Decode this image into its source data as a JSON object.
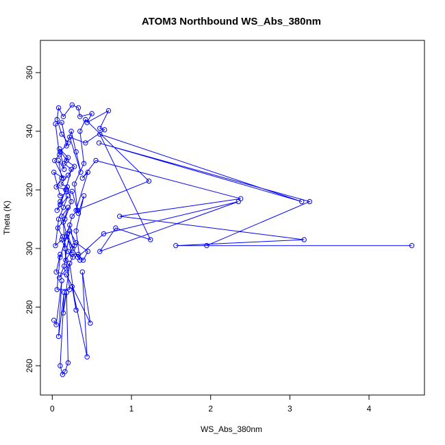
{
  "chart_data": {
    "type": "line",
    "title": "ATOM3 Northbound WS_Abs_380nm",
    "xlabel": "WS_Abs_380nm",
    "ylabel": "Theta (K)",
    "xlim": [
      -0.15,
      4.7
    ],
    "ylim": [
      250,
      371
    ],
    "x_ticks": [
      0,
      1,
      2,
      3,
      4
    ],
    "y_ticks": [
      260,
      280,
      300,
      320,
      340,
      360
    ],
    "grid": false,
    "legend": "none",
    "markers": "open-circle",
    "color": "#0000ff",
    "series": [
      {
        "points": [
          [
            0.02,
            275.5
          ],
          [
            0.05,
            274
          ],
          [
            0.12,
            289
          ],
          [
            0.08,
            270
          ],
          [
            0.15,
            285
          ],
          [
            0.1,
            260
          ],
          [
            0.13,
            257
          ],
          [
            0.16,
            258
          ],
          [
            0.2,
            261
          ],
          [
            0.18,
            285
          ],
          [
            0.14,
            278
          ],
          [
            0.22,
            295
          ],
          [
            0.3,
            279
          ],
          [
            0.25,
            287
          ],
          [
            0.44,
            263
          ],
          [
            0.38,
            292
          ],
          [
            0.48,
            274.5
          ],
          [
            0.18,
            291
          ],
          [
            0.05,
            292
          ],
          [
            0.1,
            298
          ],
          [
            0.06,
            286
          ],
          [
            0.22,
            286
          ],
          [
            0.16,
            300
          ],
          [
            0.12,
            303
          ],
          [
            0.04,
            301
          ],
          [
            0.08,
            310
          ],
          [
            0.14,
            314
          ],
          [
            0.2,
            318
          ],
          [
            0.06,
            313
          ],
          [
            0.1,
            316
          ],
          [
            0.18,
            320
          ],
          [
            0.05,
            321
          ],
          [
            0.12,
            324
          ],
          [
            0.08,
            330
          ],
          [
            0.15,
            327
          ],
          [
            0.1,
            333
          ],
          [
            0.2,
            336
          ],
          [
            0.12,
            339
          ],
          [
            0.06,
            344
          ],
          [
            0.08,
            348
          ],
          [
            0.14,
            345
          ],
          [
            0.25,
            349
          ],
          [
            0.33,
            348
          ],
          [
            0.35,
            345
          ],
          [
            0.5,
            346
          ],
          [
            0.44,
            343
          ],
          [
            0.71,
            347
          ],
          [
            0.6,
            341
          ],
          [
            0.66,
            340.5
          ],
          [
            0.42,
            336
          ],
          [
            0.22,
            338
          ],
          [
            0.36,
            326
          ],
          [
            0.3,
            333
          ],
          [
            0.24,
            340
          ],
          [
            0.18,
            335
          ],
          [
            0.12,
            343
          ],
          [
            0.04,
            342.5
          ],
          [
            0.09,
            332
          ],
          [
            0.03,
            330
          ],
          [
            0.14,
            324
          ],
          [
            0.02,
            326
          ],
          [
            0.1,
            318
          ],
          [
            0.25,
            319.5
          ],
          [
            0.33,
            312
          ],
          [
            0.4,
            318
          ],
          [
            0.3,
            306
          ],
          [
            0.35,
            296
          ],
          [
            0.26,
            300
          ],
          [
            0.19,
            305
          ],
          [
            0.25,
            311
          ],
          [
            0.32,
            313
          ],
          [
            0.28,
            322
          ],
          [
            0.4,
            329
          ],
          [
            0.35,
            340
          ],
          [
            0.42,
            344
          ],
          [
            1.22,
            323
          ],
          [
            0.3,
            313
          ],
          [
            0.45,
            326
          ],
          [
            0.38,
            324
          ],
          [
            0.55,
            330
          ],
          [
            2.38,
            317
          ],
          [
            0.85,
            311
          ],
          [
            3.18,
            303
          ],
          [
            1.56,
            301
          ],
          [
            4.54,
            301
          ],
          [
            1.95,
            301
          ],
          [
            3.25,
            316
          ],
          [
            0.59,
            336
          ],
          [
            3.15,
            316
          ],
          [
            0.6,
            339
          ],
          [
            1.24,
            303
          ],
          [
            0.8,
            307
          ],
          [
            0.6,
            299
          ],
          [
            2.35,
            316
          ],
          [
            0.65,
            305
          ],
          [
            0.32,
            297
          ],
          [
            0.18,
            304
          ],
          [
            0.1,
            297
          ],
          [
            0.22,
            308
          ],
          [
            0.28,
            301
          ],
          [
            0.17,
            296
          ],
          [
            0.14,
            309
          ],
          [
            0.2,
            314
          ],
          [
            0.12,
            311
          ],
          [
            0.25,
            298
          ],
          [
            0.33,
            298
          ],
          [
            0.39,
            296
          ],
          [
            0.45,
            299
          ],
          [
            0.3,
            302
          ],
          [
            0.22,
            306
          ],
          [
            0.15,
            294
          ],
          [
            0.09,
            290
          ],
          [
            0.18,
            293
          ],
          [
            0.26,
            297
          ],
          [
            0.2,
            299
          ],
          [
            0.13,
            304
          ],
          [
            0.07,
            307
          ],
          [
            0.16,
            310
          ],
          [
            0.24,
            316
          ],
          [
            0.19,
            321
          ],
          [
            0.11,
            322
          ],
          [
            0.2,
            325
          ],
          [
            0.28,
            328
          ],
          [
            0.18,
            330
          ],
          [
            0.09,
            334
          ],
          [
            0.2,
            331
          ],
          [
            0.15,
            329
          ],
          [
            0.24,
            327
          ],
          [
            0.17,
            320
          ],
          [
            0.1,
            315
          ]
        ]
      }
    ]
  }
}
